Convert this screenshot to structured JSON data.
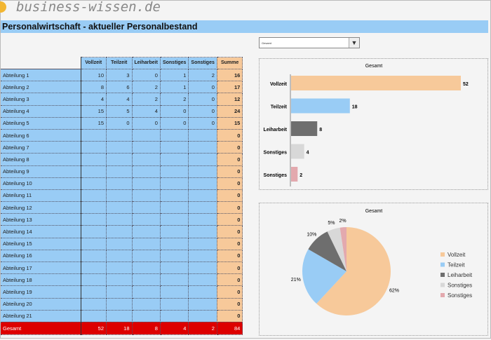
{
  "logo": "business-wissen.de",
  "title": "Personalwirtschaft - aktueller Personalbestand",
  "table": {
    "headers": [
      "Vollzeit",
      "Teilzeit",
      "Leiharbeit",
      "Sonstiges",
      "Sonstiges",
      "Summe"
    ],
    "rows": [
      [
        "Abteilung 1",
        "10",
        "3",
        "0",
        "1",
        "2",
        "16"
      ],
      [
        "Abteilung 2",
        "8",
        "6",
        "2",
        "1",
        "0",
        "17"
      ],
      [
        "Abteilung 3",
        "4",
        "4",
        "2",
        "2",
        "0",
        "12"
      ],
      [
        "Abteilung 4",
        "15",
        "5",
        "4",
        "0",
        "0",
        "24"
      ],
      [
        "Abteilung 5",
        "15",
        "0",
        "0",
        "0",
        "0",
        "15"
      ],
      [
        "Abteilung 6",
        "",
        "",
        "",
        "",
        "",
        "0"
      ],
      [
        "Abteilung 7",
        "",
        "",
        "",
        "",
        "",
        "0"
      ],
      [
        "Abteilung 8",
        "",
        "",
        "",
        "",
        "",
        "0"
      ],
      [
        "Abteilung 9",
        "",
        "",
        "",
        "",
        "",
        "0"
      ],
      [
        "Abteilung 10",
        "",
        "",
        "",
        "",
        "",
        "0"
      ],
      [
        "Abteilung 11",
        "",
        "",
        "",
        "",
        "",
        "0"
      ],
      [
        "Abteilung 12",
        "",
        "",
        "",
        "",
        "",
        "0"
      ],
      [
        "Abteilung 13",
        "",
        "",
        "",
        "",
        "",
        "0"
      ],
      [
        "Abteilung 14",
        "",
        "",
        "",
        "",
        "",
        "0"
      ],
      [
        "Abteilung 15",
        "",
        "",
        "",
        "",
        "",
        "0"
      ],
      [
        "Abteilung 16",
        "",
        "",
        "",
        "",
        "",
        "0"
      ],
      [
        "Abteilung 17",
        "",
        "",
        "",
        "",
        "",
        "0"
      ],
      [
        "Abteilung 18",
        "",
        "",
        "",
        "",
        "",
        "0"
      ],
      [
        "Abteilung 19",
        "",
        "",
        "",
        "",
        "",
        "0"
      ],
      [
        "Abteilung 20",
        "",
        "",
        "",
        "",
        "",
        "0"
      ],
      [
        "Abteilung 21",
        "",
        "",
        "",
        "",
        "",
        "0"
      ]
    ],
    "total": [
      "Gesamt",
      "52",
      "18",
      "8",
      "4",
      "2",
      "84"
    ]
  },
  "dropdown": {
    "value": "Gesamt"
  },
  "chart_data": [
    {
      "type": "bar",
      "title": "Gesamt",
      "categories": [
        "Vollzeit",
        "Teilzeit",
        "Leiharbeit",
        "Sonstiges",
        "Sonstiges"
      ],
      "values": [
        52,
        18,
        8,
        4,
        2
      ],
      "colors": [
        "#f7c99a",
        "#99ccf5",
        "#6e6e6e",
        "#d8d8d8",
        "#e3a9ae"
      ]
    },
    {
      "type": "pie",
      "title": "Gesamt",
      "categories": [
        "Vollzeit",
        "Teilzeit",
        "Leiharbeit",
        "Sonstiges",
        "Sonstiges"
      ],
      "values": [
        52,
        18,
        8,
        4,
        2
      ],
      "labels": [
        "62%",
        "21%",
        "10%",
        "5%",
        "2%"
      ],
      "legend": "right",
      "colors": [
        "#f7c99a",
        "#99ccf5",
        "#6e6e6e",
        "#d8d8d8",
        "#e3a9ae"
      ]
    }
  ]
}
